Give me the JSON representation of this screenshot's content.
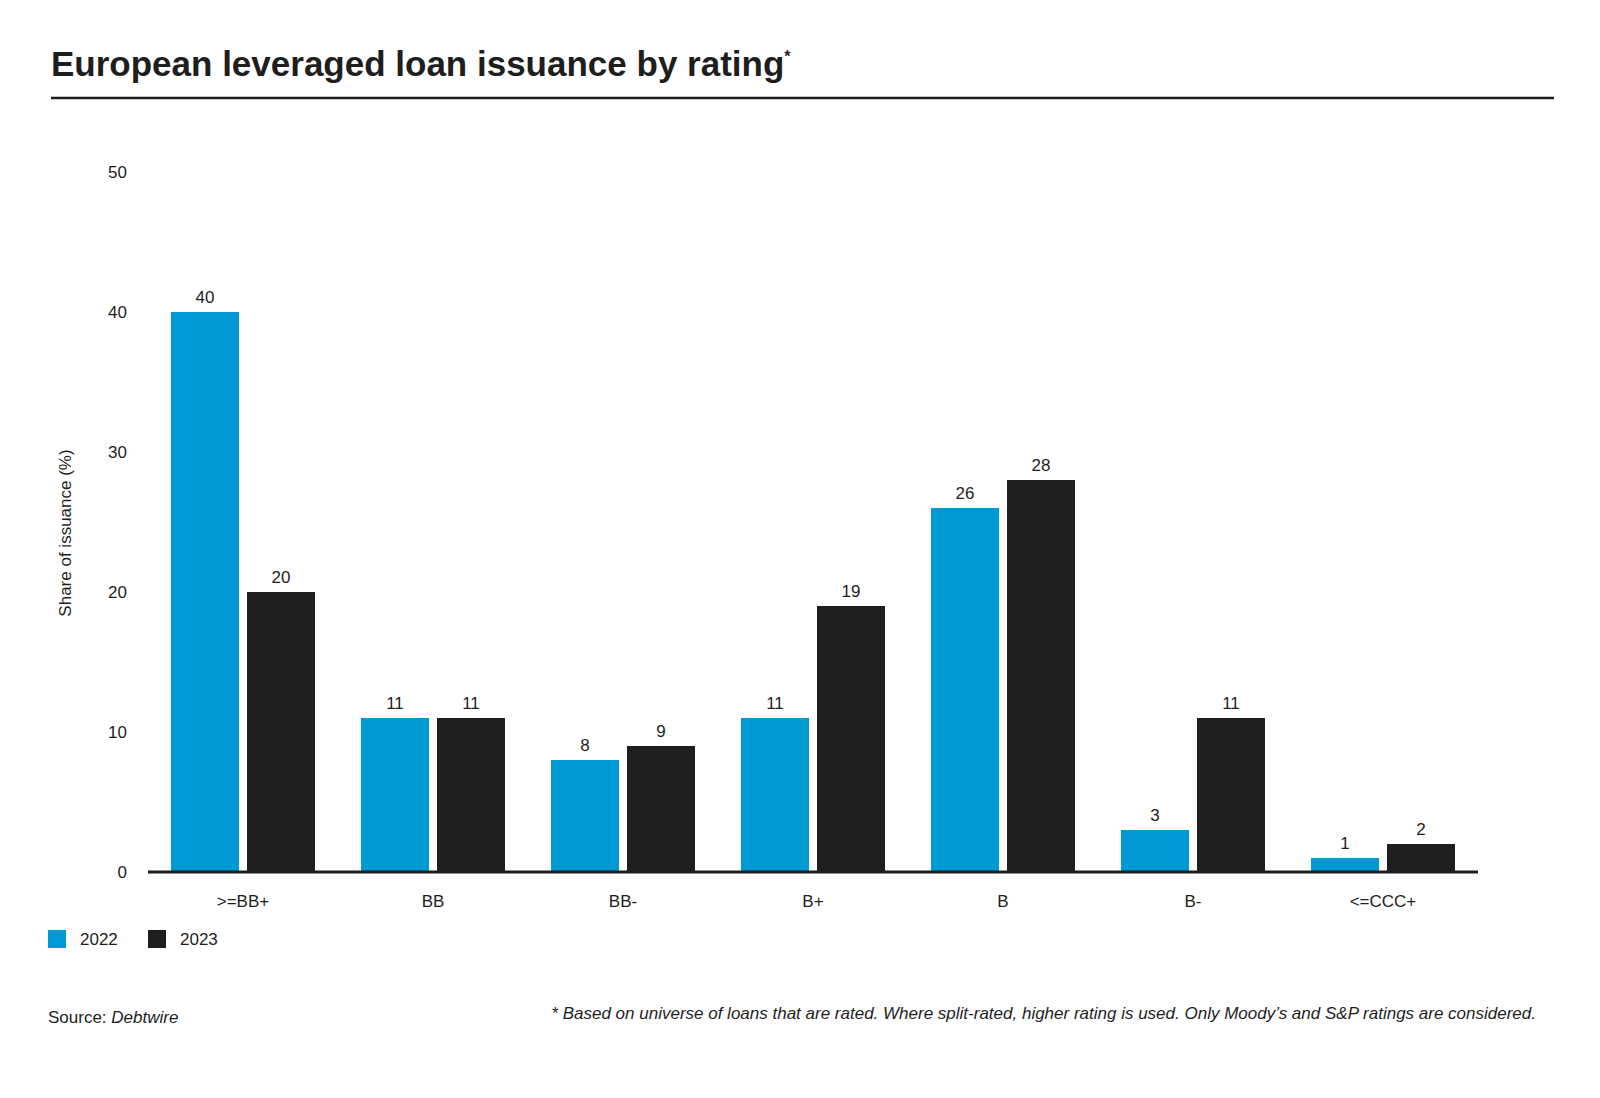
{
  "chart_data": {
    "type": "bar",
    "title": "European leveraged loan issuance by rating*",
    "y_label": "Share of issuance (%)",
    "categories": [
      ">=BB+",
      "BB",
      "BB-",
      "B+",
      "B",
      "B-",
      "<=CCC+"
    ],
    "series": [
      {
        "name": "2022",
        "color": "#0099d4",
        "values": [
          40,
          11,
          8,
          11,
          26,
          3,
          1
        ]
      },
      {
        "name": "2023",
        "color": "#1e1e1e",
        "values": [
          20,
          11,
          9,
          19,
          28,
          11,
          2
        ]
      }
    ],
    "ylim": [
      0,
      50
    ],
    "yticks": [
      0,
      10,
      20,
      30,
      40,
      50
    ],
    "grid": false,
    "data_labels": true,
    "legend": "bottom-left",
    "source": "Source: Debtwire",
    "footnote": "* Based on universe of loans that are rated. Where split-rated, higher rating is used. Only Moody’s and S&P ratings are considered."
  }
}
